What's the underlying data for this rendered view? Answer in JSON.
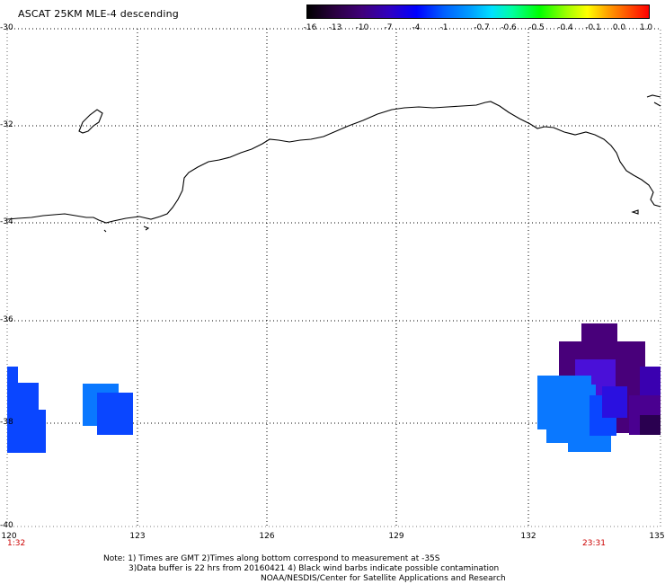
{
  "title": "ASCAT 25KM MLE-4 descending",
  "colorbar": {
    "labels": [
      "-16",
      "-13",
      "-10",
      "-7",
      "-4",
      "-1",
      "-0.7",
      "-0.6",
      "-0.5",
      "-0.4",
      "-0.1",
      "0.0",
      "1.0"
    ]
  },
  "axes": {
    "lat_labels": [
      "-30",
      "-32",
      "-34",
      "-36",
      "-38",
      "-40"
    ],
    "lon_labels": [
      "120",
      "123",
      "126",
      "129",
      "132",
      "135"
    ]
  },
  "times": {
    "left": "1:32",
    "right": "23:31"
  },
  "notes": {
    "line1": "Note: 1) Times are GMT 2)Times along bottom correspond to measurement at -35S",
    "line2": "3)Data buffer is 22 hrs from 20160421 4) Black wind barbs indicate possible contamination",
    "line3": "NOAA/NESDIS/Center for Satellite Applications and Research"
  },
  "colors": {
    "grid": "#000000",
    "swath_blue": "#0a46ff",
    "swath_light_blue": "#0a78ff",
    "swath_purple": "#48007a",
    "swath_violet": "#4a10d8",
    "time_label": "#cc0000"
  }
}
